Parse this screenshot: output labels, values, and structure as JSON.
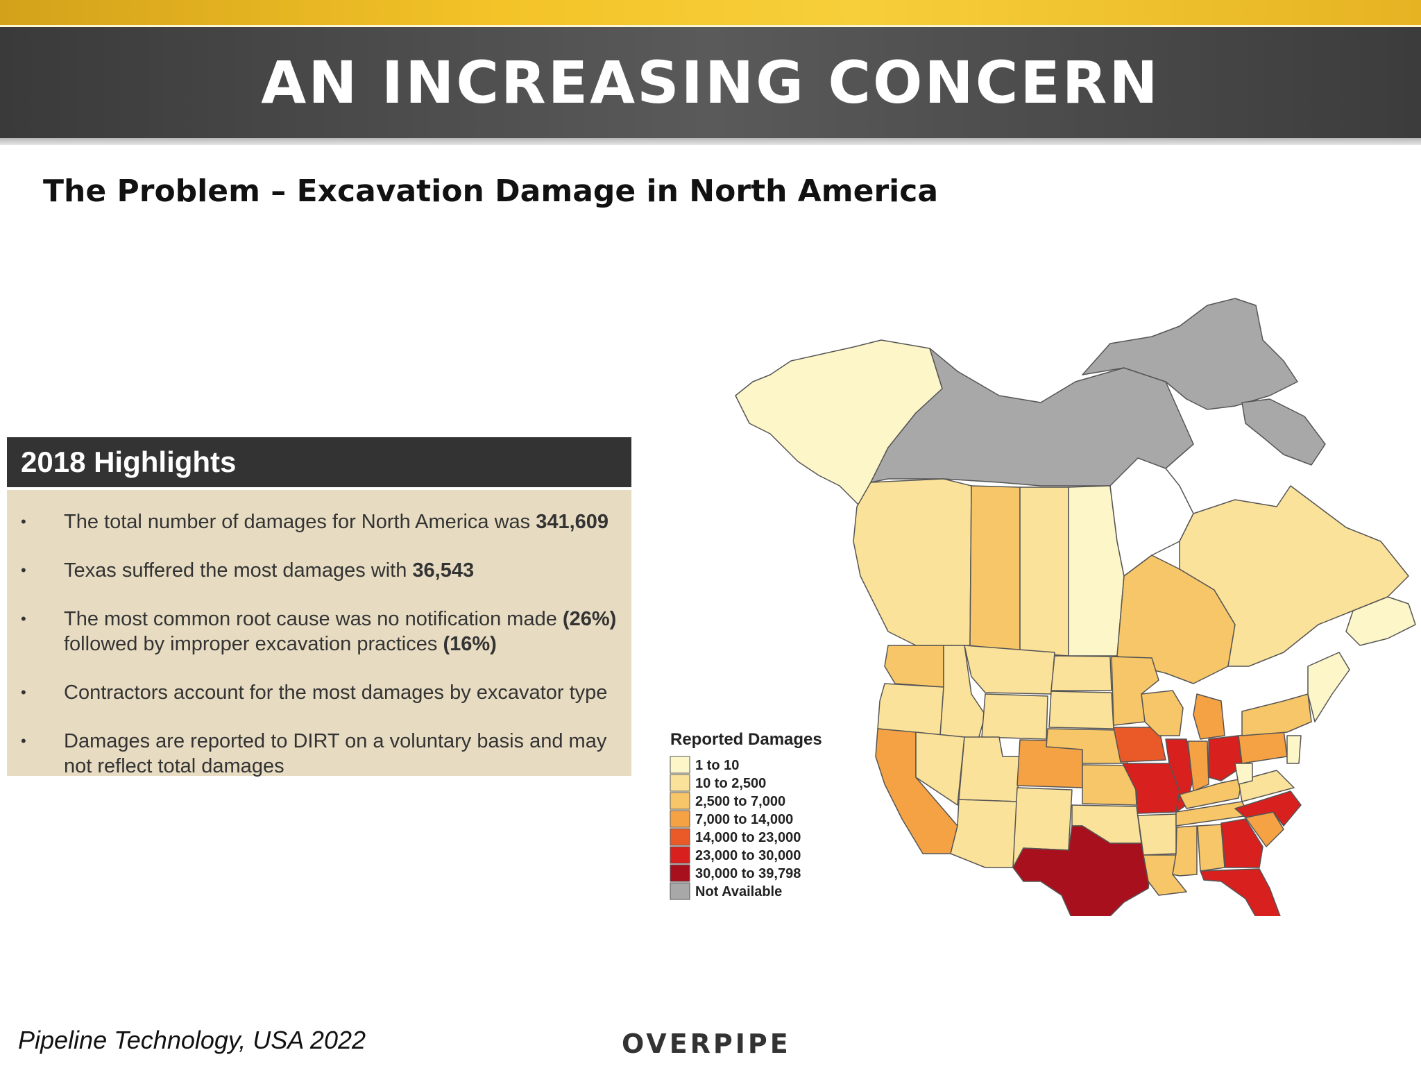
{
  "header": {
    "title": "AN INCREASING CONCERN",
    "subtitle": "The Problem – Excavation Damage in North America"
  },
  "highlights": {
    "title": "2018 Highlights",
    "items": [
      {
        "text": "The total number of damages for North America was ",
        "bold": "341,609",
        "rest": ""
      },
      {
        "text": "Texas suffered the most damages with ",
        "bold": "36,543",
        "rest": ""
      },
      {
        "text": "The most common root cause was no notification made ",
        "bold": "(26%)",
        "rest": " followed by improper excavation practices ",
        "bold2": "(16%)"
      },
      {
        "text": "Contractors account for the most damages by excavator type",
        "bold": "",
        "rest": ""
      },
      {
        "text": "Damages are reported to DIRT on a voluntary basis and may not reflect total damages",
        "bold": "",
        "rest": ""
      }
    ]
  },
  "map": {
    "legend_title": "Reported Damages",
    "legend": [
      {
        "label": "1 to 10",
        "color": "#fdf6c8"
      },
      {
        "label": "10 to 2,500",
        "color": "#fbe29a"
      },
      {
        "label": "2,500 to 7,000",
        "color": "#f7c668"
      },
      {
        "label": "7,000 to 14,000",
        "color": "#f5a244"
      },
      {
        "label": "14,000 to 23,000",
        "color": "#ea5a28"
      },
      {
        "label": "23,000 to 30,000",
        "color": "#d8201e"
      },
      {
        "label": "30,000 to 39,798",
        "color": "#a9101e"
      },
      {
        "label": "Not Available",
        "color": "#a8a8a8"
      }
    ]
  },
  "footer": {
    "source": "Pipeline Technology, USA 2022",
    "logo": "OVERPIPE"
  }
}
